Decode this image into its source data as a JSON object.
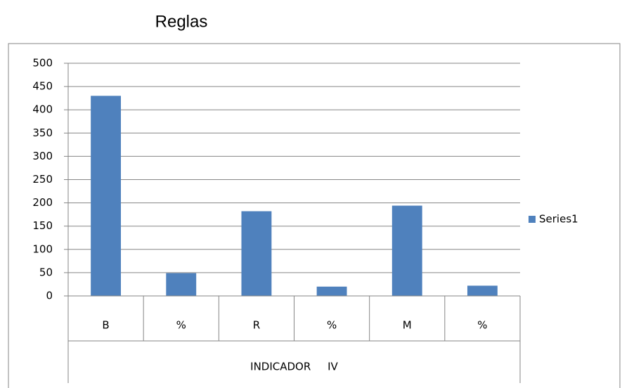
{
  "chart_data": {
    "type": "bar",
    "title": "Reglas",
    "categories": [
      "B",
      "%",
      "R",
      "%",
      "M",
      "%"
    ],
    "x_group_label": "INDICADOR     IV",
    "series": [
      {
        "name": "Series1",
        "color": "#4f81bd",
        "values": [
          430,
          49,
          182,
          20,
          194,
          22
        ]
      }
    ],
    "ylim": [
      0,
      500
    ],
    "yticks": [
      0,
      50,
      100,
      150,
      200,
      250,
      300,
      350,
      400,
      450,
      500
    ],
    "grid": true,
    "legend": "right"
  }
}
